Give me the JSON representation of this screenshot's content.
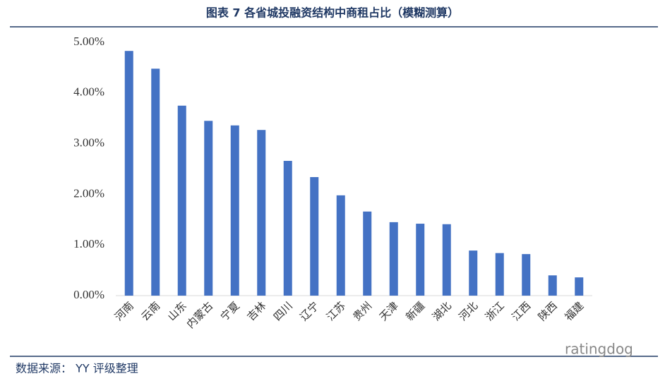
{
  "chart_data": {
    "type": "bar",
    "title": "图表 7 各省城投融资结构中商租占比（模糊测算）",
    "source": "数据来源： YY 评级整理",
    "watermark": "ratingdog",
    "categories": [
      "河南",
      "云南",
      "山东",
      "内蒙古",
      "宁夏",
      "吉林",
      "四川",
      "辽宁",
      "江苏",
      "贵州",
      "天津",
      "新疆",
      "湖北",
      "河北",
      "浙江",
      "江西",
      "陕西",
      "福建"
    ],
    "values": [
      4.83,
      4.48,
      3.75,
      3.45,
      3.36,
      3.27,
      2.66,
      2.34,
      1.98,
      1.66,
      1.45,
      1.42,
      1.41,
      0.89,
      0.84,
      0.82,
      0.4,
      0.36
    ],
    "color": "#4472c4",
    "ylim": [
      0,
      5
    ],
    "yticks": [
      {
        "value": 0,
        "label": "0.00%"
      },
      {
        "value": 1,
        "label": "1.00%"
      },
      {
        "value": 2,
        "label": "2.00%"
      },
      {
        "value": 3,
        "label": "3.00%"
      },
      {
        "value": 4,
        "label": "4.00%"
      },
      {
        "value": 5,
        "label": "5.00%"
      }
    ]
  }
}
